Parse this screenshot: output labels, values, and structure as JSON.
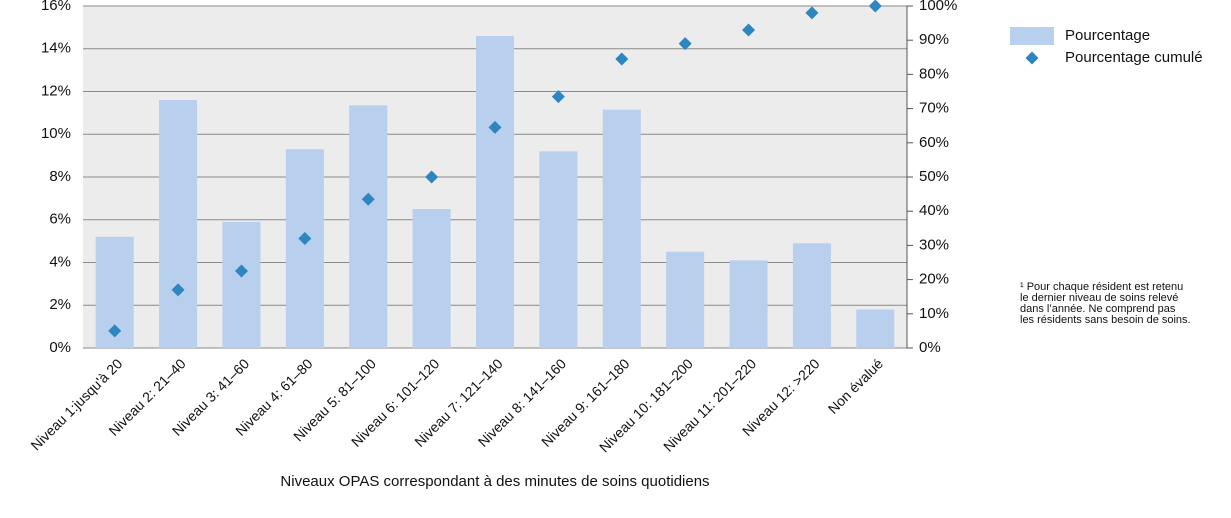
{
  "chart_data": {
    "type": "bar",
    "x_label": "Niveaux OPAS correspondant à des minutes de soins quotidiens",
    "categories": [
      "Niveau 1:jusqu'à 20",
      "Niveau 2: 21–40",
      "Niveau 3: 41–60",
      "Niveau 4: 61–80",
      "Niveau 5: 81–100",
      "Niveau 6: 101–120",
      "Niveau 7: 121–140",
      "Niveau 8: 141–160",
      "Niveau 9: 161–180",
      "Niveau 10: 181–200",
      "Niveau 11: 201–220",
      "Niveau 12: >220",
      "Non évalué"
    ],
    "series": [
      {
        "name": "Pourcentage",
        "type": "bar",
        "color": "#b8cfee",
        "values": [
          5.2,
          11.6,
          5.9,
          9.3,
          11.35,
          6.5,
          14.6,
          9.2,
          11.15,
          4.5,
          4.1,
          4.9,
          1.8
        ]
      },
      {
        "name": "Pourcentage cumulé",
        "type": "scatter",
        "marker": "diamond",
        "axis": "y2",
        "color": "#2e86c1",
        "values": [
          5,
          17,
          22.5,
          32,
          43.5,
          50,
          64.5,
          73.5,
          84.5,
          89,
          93,
          98,
          100
        ]
      }
    ],
    "ylim": [
      0,
      16
    ],
    "yticks": [
      {
        "value": 0,
        "label": "0%"
      },
      {
        "value": 2,
        "label": "2%"
      },
      {
        "value": 4,
        "label": "4%"
      },
      {
        "value": 6,
        "label": "6%"
      },
      {
        "value": 8,
        "label": "8%"
      },
      {
        "value": 10,
        "label": "10%"
      },
      {
        "value": 12,
        "label": "12%"
      },
      {
        "value": 14,
        "label": "14%"
      },
      {
        "value": 16,
        "label": "16%"
      }
    ],
    "y2lim": [
      0,
      100
    ],
    "y2ticks": [
      {
        "value": 0,
        "label": "0%"
      },
      {
        "value": 10,
        "label": "10%"
      },
      {
        "value": 20,
        "label": "20%"
      },
      {
        "value": 30,
        "label": "30%"
      },
      {
        "value": 40,
        "label": "40%"
      },
      {
        "value": 50,
        "label": "50%"
      },
      {
        "value": 60,
        "label": "60%"
      },
      {
        "value": 70,
        "label": "70%"
      },
      {
        "value": 80,
        "label": "80%"
      },
      {
        "value": 90,
        "label": "90%"
      },
      {
        "value": 100,
        "label": "100%"
      }
    ],
    "grid": true,
    "legend": "right",
    "footnote": [
      "¹ Pour chaque résident est retenu",
      "le dernier niveau de soins relevé",
      "dans l’année. Ne comprend pas",
      "les résidents sans besoin de soins."
    ]
  }
}
